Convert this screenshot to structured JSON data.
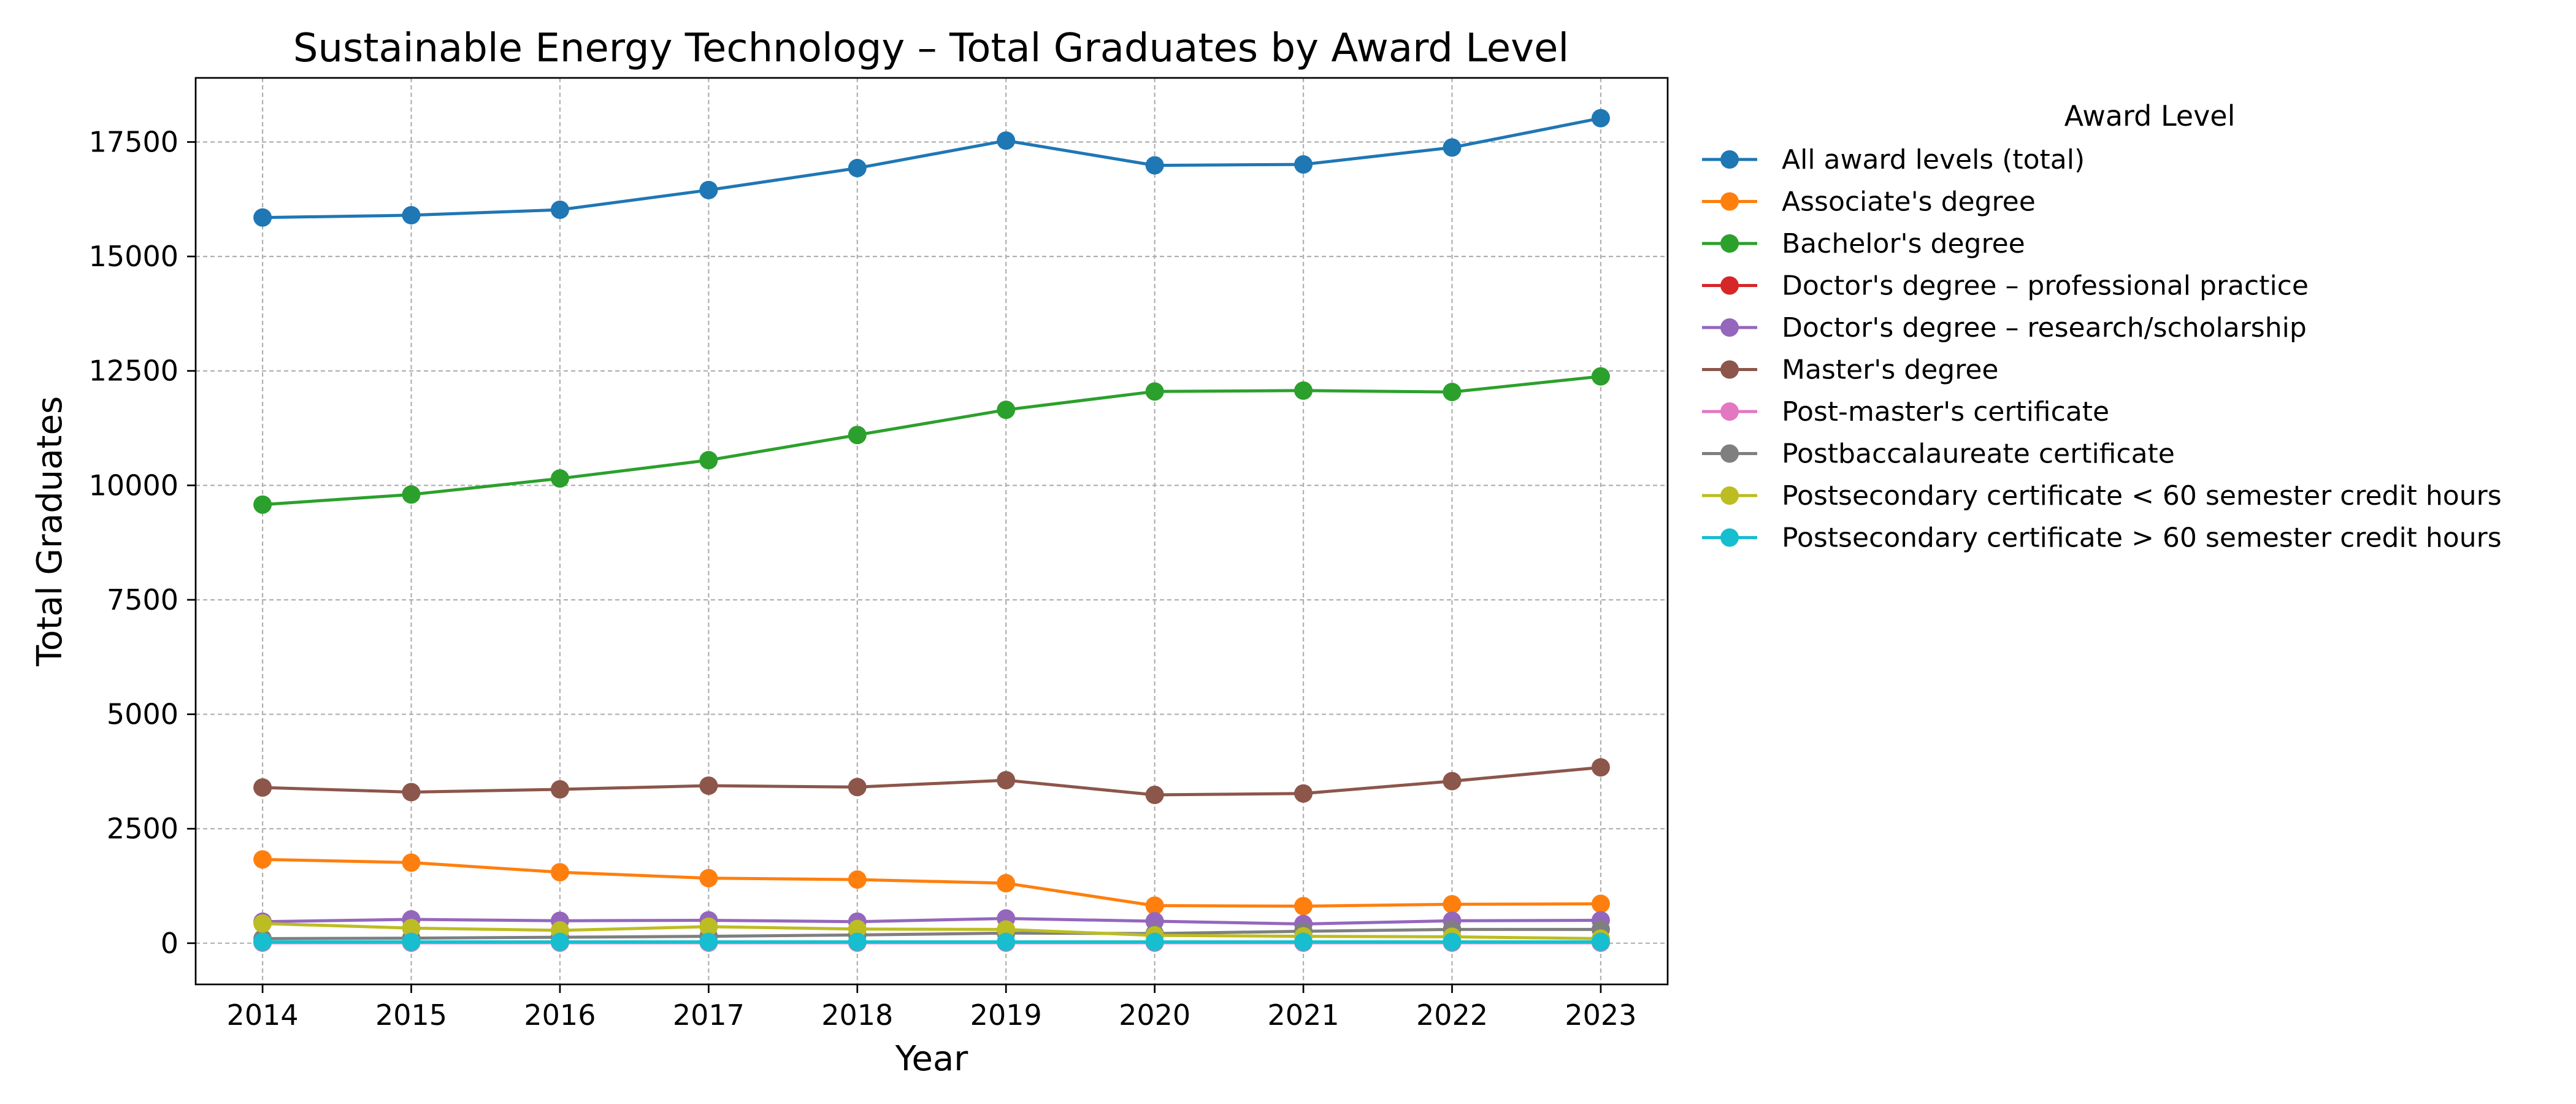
{
  "chart_data": {
    "type": "line",
    "title": "Sustainable Energy Technology – Total Graduates by Award Level",
    "xlabel": "Year",
    "ylabel": "Total Graduates",
    "x": [
      2014,
      2015,
      2016,
      2017,
      2018,
      2019,
      2020,
      2021,
      2022,
      2023
    ],
    "xlim": [
      2013.55,
      2023.45
    ],
    "ylim": [
      -900,
      18900
    ],
    "yticks": [
      0,
      2500,
      5000,
      7500,
      10000,
      12500,
      15000,
      17500
    ],
    "grid": true,
    "legend": {
      "title": "Award Level",
      "placement": "outside-right"
    },
    "series": [
      {
        "name": "All award levels (total)",
        "color": "#1f77b4",
        "values": [
          15850,
          15900,
          16020,
          16450,
          16930,
          17530,
          16990,
          17010,
          17380,
          18020
        ]
      },
      {
        "name": "Associate's degree",
        "color": "#ff7f0e",
        "values": [
          1830,
          1760,
          1550,
          1420,
          1390,
          1310,
          820,
          810,
          850,
          860
        ]
      },
      {
        "name": "Bachelor's degree",
        "color": "#2ca02c",
        "values": [
          9580,
          9800,
          10150,
          10550,
          11100,
          11650,
          12050,
          12070,
          12040,
          12380
        ]
      },
      {
        "name": "Doctor's degree – professional practice",
        "color": "#d62728",
        "values": [
          20,
          15,
          25,
          20,
          25,
          20,
          20,
          15,
          20,
          20
        ]
      },
      {
        "name": "Doctor's degree – research/scholarship",
        "color": "#9467bd",
        "values": [
          470,
          520,
          490,
          500,
          470,
          540,
          480,
          420,
          490,
          500
        ]
      },
      {
        "name": "Master's degree",
        "color": "#8c564b",
        "values": [
          3400,
          3300,
          3360,
          3440,
          3410,
          3560,
          3240,
          3270,
          3540,
          3840
        ]
      },
      {
        "name": "Post-master's certificate",
        "color": "#e377c2",
        "values": [
          10,
          10,
          10,
          10,
          10,
          10,
          10,
          10,
          10,
          10
        ]
      },
      {
        "name": "Postbaccalaureate certificate",
        "color": "#7f7f7f",
        "values": [
          100,
          110,
          130,
          150,
          180,
          220,
          210,
          260,
          300,
          300
        ]
      },
      {
        "name": "Postsecondary certificate < 60 semester credit hours",
        "color": "#bcbd22",
        "values": [
          430,
          330,
          280,
          360,
          310,
          300,
          170,
          150,
          140,
          100
        ]
      },
      {
        "name": "Postsecondary certificate > 60 semester credit hours",
        "color": "#17becf",
        "values": [
          30,
          30,
          30,
          30,
          30,
          30,
          30,
          30,
          30,
          30
        ]
      }
    ]
  }
}
